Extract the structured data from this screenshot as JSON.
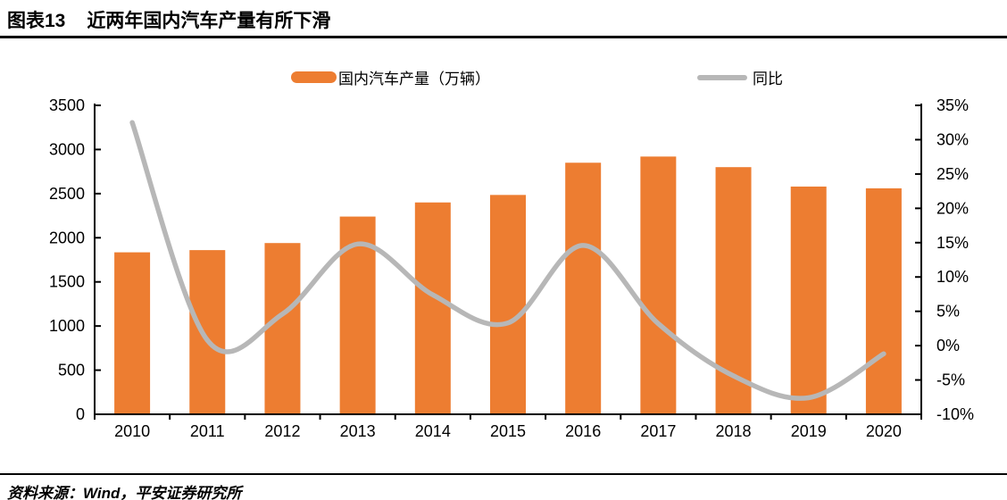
{
  "header": {
    "fig_label": "图表13",
    "title": "近两年国内汽车产量有所下滑"
  },
  "footer": {
    "source": "资料来源：Wind，平安证券研究所"
  },
  "chart_data": {
    "type": "bar",
    "combo": "bar+line",
    "title": "近两年国内汽车产量有所下滑",
    "categories": [
      "2010",
      "2011",
      "2012",
      "2013",
      "2014",
      "2015",
      "2016",
      "2017",
      "2018",
      "2019",
      "2020"
    ],
    "series": [
      {
        "name": "国内汽车产量（万辆）",
        "type": "bar",
        "axis": "left",
        "color": "#ED7D31",
        "values": [
          1835,
          1860,
          1940,
          2240,
          2400,
          2485,
          2850,
          2920,
          2800,
          2580,
          2560
        ]
      },
      {
        "name": "同比",
        "type": "line",
        "axis": "right",
        "color": "#B7B7B7",
        "smooth": true,
        "values": [
          32.5,
          0.8,
          4.6,
          14.8,
          7.4,
          3.3,
          14.6,
          3.2,
          -4.4,
          -7.6,
          -1.2
        ]
      }
    ],
    "left_axis": {
      "min": 0,
      "max": 3500,
      "step": 500,
      "tick_labels": [
        "0",
        "500",
        "1000",
        "1500",
        "2000",
        "2500",
        "3000",
        "3500"
      ]
    },
    "right_axis": {
      "min": -10,
      "max": 35,
      "step": 5,
      "format": "percent",
      "tick_labels": [
        "-10%",
        "-5%",
        "0%",
        "5%",
        "10%",
        "15%",
        "20%",
        "25%",
        "30%",
        "35%"
      ]
    },
    "grid": false,
    "legend_position": "top",
    "axis_color": "#000000"
  }
}
